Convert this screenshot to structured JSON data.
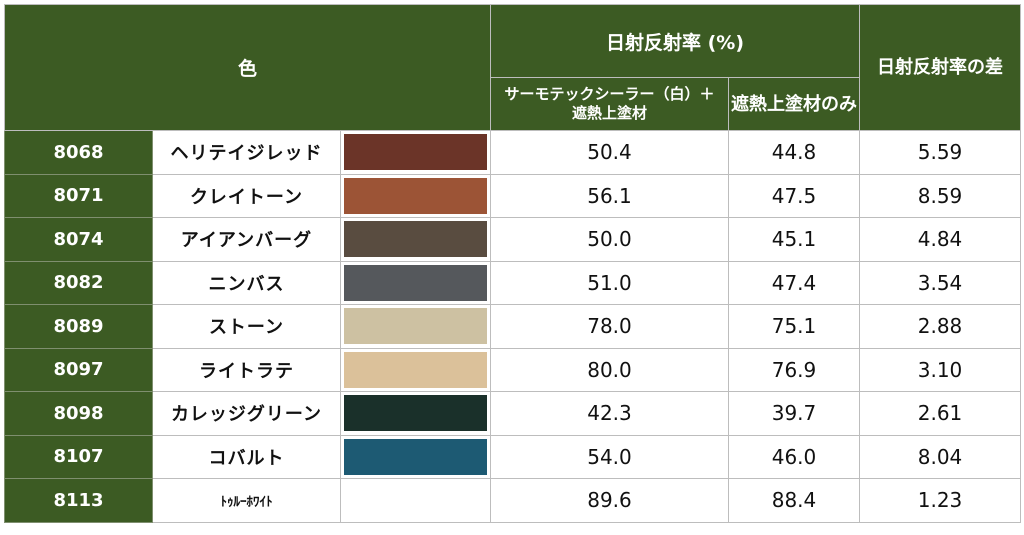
{
  "header": {
    "color": "色",
    "reflectance": "日射反射率 (%)",
    "col_thermotec": "サーモテックシーラー（白）＋　遮熱上塗材",
    "col_top_only": "遮熱上塗材のみ",
    "difference": "日射反射率の差"
  },
  "rows": [
    {
      "code": "8068",
      "name": "ヘリテイジレッド",
      "swatch": "#6b3428",
      "with_sealer": "50.4",
      "top_only": "44.8",
      "diff": "5.59"
    },
    {
      "code": "8071",
      "name": "クレイトーン",
      "swatch": "#9c5436",
      "with_sealer": "56.1",
      "top_only": "47.5",
      "diff": "8.59"
    },
    {
      "code": "8074",
      "name": "アイアンバーグ",
      "swatch": "#594c40",
      "with_sealer": "50.0",
      "top_only": "45.1",
      "diff": "4.84"
    },
    {
      "code": "8082",
      "name": "ニンバス",
      "swatch": "#55585c",
      "with_sealer": "51.0",
      "top_only": "47.4",
      "diff": "3.54"
    },
    {
      "code": "8089",
      "name": "ストーン",
      "swatch": "#cdc1a2",
      "with_sealer": "78.0",
      "top_only": "75.1",
      "diff": "2.88"
    },
    {
      "code": "8097",
      "name": "ライトラテ",
      "swatch": "#dbc19a",
      "with_sealer": "80.0",
      "top_only": "76.9",
      "diff": "3.10"
    },
    {
      "code": "8098",
      "name": "カレッジグリーン",
      "swatch": "#1a302a",
      "with_sealer": "42.3",
      "top_only": "39.7",
      "diff": "2.61"
    },
    {
      "code": "8107",
      "name": "コバルト",
      "swatch": "#1d5a73",
      "with_sealer": "54.0",
      "top_only": "46.0",
      "diff": "8.04"
    },
    {
      "code": "8113",
      "name": "ﾄｩﾙｰﾎﾜｲﾄ",
      "swatch": "#ffffff",
      "with_sealer": "89.6",
      "top_only": "88.4",
      "diff": "1.23"
    }
  ]
}
